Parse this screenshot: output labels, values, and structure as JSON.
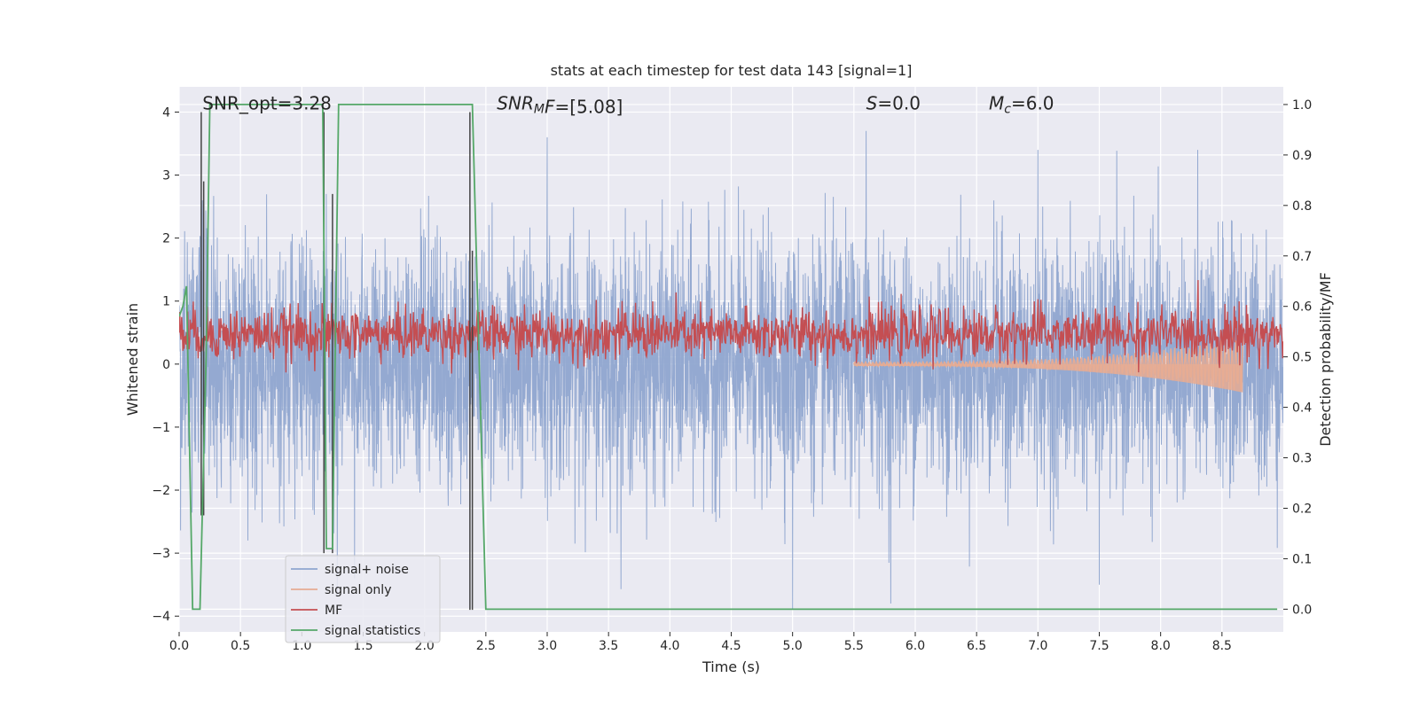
{
  "chart_data": {
    "type": "line",
    "title": "stats at each timestep for test data 143 [signal=1]",
    "xlabel": "Time (s)",
    "ylabel": "Whitened strain",
    "y2label": "Detection probability/MF",
    "xlim": [
      0.0,
      9.0
    ],
    "ylim": [
      -4.25,
      4.4
    ],
    "y2lim": [
      -0.045,
      1.035
    ],
    "xticks": [
      0.0,
      0.5,
      1.0,
      1.5,
      2.0,
      2.5,
      3.0,
      3.5,
      4.0,
      4.5,
      5.0,
      5.5,
      6.0,
      6.5,
      7.0,
      7.5,
      8.0,
      8.5
    ],
    "xtick_labels": [
      "0.0",
      "0.5",
      "1.0",
      "1.5",
      "2.0",
      "2.5",
      "3.0",
      "3.5",
      "4.0",
      "4.5",
      "5.0",
      "5.5",
      "6.0",
      "6.5",
      "7.0",
      "7.5",
      "8.0",
      "8.5"
    ],
    "yticks": [
      4,
      3,
      2,
      1,
      0,
      -1,
      -2,
      -3,
      -4
    ],
    "ytick_labels": [
      "4",
      "3",
      "2",
      "1",
      "0",
      "−1",
      "−2",
      "−3",
      "−4"
    ],
    "y2ticks": [
      1.0,
      0.9,
      0.8,
      0.7,
      0.6,
      0.5,
      0.4,
      0.3,
      0.2,
      0.1,
      0.0
    ],
    "y2tick_labels": [
      "1.0",
      "0.9",
      "0.8",
      "0.7",
      "0.6",
      "0.5",
      "0.4",
      "0.3",
      "0.2",
      "0.1",
      "0.0"
    ],
    "annotations": [
      {
        "id": "snr-opt",
        "parts": [
          {
            "t": "SNR_opt=3.28",
            "style": "normal"
          }
        ],
        "x": 0.19,
        "y": 4.1
      },
      {
        "id": "snr-mf",
        "parts": [
          {
            "t": "SNR",
            "style": "italic"
          },
          {
            "t": "M",
            "style": "italic-sub"
          },
          {
            "t": "F",
            "style": "italic"
          },
          {
            "t": "=[5.08]",
            "style": "normal"
          }
        ],
        "x": 2.59,
        "y": 4.1
      },
      {
        "id": "s-value",
        "parts": [
          {
            "t": "S",
            "style": "italic"
          },
          {
            "t": "=0.0",
            "style": "normal"
          }
        ],
        "x": 5.6,
        "y": 4.1
      },
      {
        "id": "mc-value",
        "parts": [
          {
            "t": "M",
            "style": "italic"
          },
          {
            "t": "c",
            "style": "italic-sub"
          },
          {
            "t": "=6.0",
            "style": "normal"
          }
        ],
        "x": 6.6,
        "y": 4.1
      }
    ],
    "legend": {
      "position": "lower-left",
      "entries": [
        {
          "label": "signal+ noise",
          "color": "#8fa5cf"
        },
        {
          "label": "signal only",
          "color": "#e6ab93"
        },
        {
          "label": "MF",
          "color": "#c44e52"
        },
        {
          "label": "signal statistics",
          "color": "#55a868"
        }
      ]
    },
    "series": [
      {
        "name": "signal+ noise",
        "axis": "left",
        "color": "#8fa5cf",
        "style": "dense-noise",
        "x_range": [
          0.0,
          9.0
        ],
        "sample_rate": 512,
        "std": 1.0,
        "notable_peaks": [
          [
            0.19,
            2.6
          ],
          [
            0.56,
            -2.8
          ],
          [
            1.2,
            2.7
          ],
          [
            1.29,
            -3.7
          ],
          [
            1.43,
            -3.4
          ],
          [
            3.0,
            3.6
          ],
          [
            5.0,
            -3.9
          ],
          [
            5.6,
            3.7
          ],
          [
            5.8,
            -3.8
          ],
          [
            7.5,
            -3.5
          ],
          [
            7.0,
            3.4
          ]
        ]
      },
      {
        "name": "signal only",
        "axis": "left",
        "color": "#e6ab93",
        "style": "chirp",
        "x_range": [
          5.5,
          8.67
        ],
        "amplitude_start": 0.03,
        "amplitude_end": 0.45
      },
      {
        "name": "MF",
        "axis": "right",
        "color": "#c44e52",
        "style": "noisy-band",
        "x_range": [
          0.0,
          9.0
        ],
        "mean": 0.545,
        "spread": 0.025,
        "spikes": [
          [
            3.86,
            0.61
          ],
          [
            6.97,
            0.61
          ],
          [
            8.64,
            0.61
          ],
          [
            1.07,
            0.59
          ]
        ]
      },
      {
        "name": "signal statistics",
        "axis": "right",
        "color": "#55a868",
        "style": "line",
        "x": [
          0.0,
          0.03,
          0.06,
          0.11,
          0.17,
          0.22,
          0.25,
          1.17,
          1.2,
          1.25,
          1.3,
          2.39,
          2.5,
          8.95
        ],
        "y": [
          0.58,
          0.6,
          0.64,
          0.0,
          0.0,
          0.5,
          1.0,
          1.0,
          0.12,
          0.12,
          1.0,
          1.0,
          0.0,
          0.0
        ]
      },
      {
        "name": "trigger markers",
        "axis": "left",
        "color": "#444444",
        "style": "vlines",
        "lines": [
          [
            0.18,
            4.0,
            -2.4
          ],
          [
            0.2,
            2.9,
            -2.4
          ],
          [
            1.18,
            4.0,
            -3.0
          ],
          [
            1.25,
            2.7,
            -3.0
          ],
          [
            2.37,
            4.0,
            -3.9
          ],
          [
            2.39,
            1.8,
            -3.9
          ]
        ]
      }
    ]
  }
}
